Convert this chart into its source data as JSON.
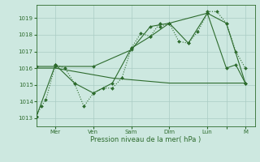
{
  "background_color": "#cde8e0",
  "grid_color": "#aaccC4",
  "line_color": "#2d6b2d",
  "xlabel": "Pression niveau de la mer( hPa )",
  "ylim": [
    1012.5,
    1019.8
  ],
  "yticks": [
    1013,
    1014,
    1015,
    1016,
    1017,
    1018,
    1019
  ],
  "xlim": [
    0,
    23
  ],
  "day_positions": [
    2,
    6,
    10,
    14,
    18,
    20,
    22
  ],
  "day_labels": [
    "Mer",
    "Ven",
    "Sam",
    "Dim",
    "Lun",
    "",
    "M"
  ],
  "series1_x": [
    0,
    0.5,
    1,
    2,
    2,
    3,
    4,
    5,
    6,
    7,
    8,
    9,
    10,
    11,
    12,
    13,
    13,
    14,
    15,
    16,
    17,
    18,
    18,
    19,
    20,
    21,
    22
  ],
  "series1_y": [
    1013.1,
    1013.7,
    1014.1,
    1016.2,
    1016.2,
    1016.0,
    1015.1,
    1013.7,
    1014.5,
    1014.8,
    1014.8,
    1015.4,
    1017.2,
    1018.1,
    1017.9,
    1018.7,
    1018.5,
    1018.7,
    1017.6,
    1017.5,
    1018.2,
    1019.3,
    1019.4,
    1019.4,
    1018.7,
    1017.0,
    1016.0
  ],
  "series2_x": [
    0,
    2,
    4,
    6,
    8,
    10,
    12,
    14,
    16,
    18,
    20,
    22
  ],
  "series2_y": [
    1013.1,
    1016.2,
    1015.1,
    1014.5,
    1015.1,
    1017.2,
    1017.9,
    1018.7,
    1017.5,
    1019.3,
    1018.7,
    1015.1
  ],
  "series3_x": [
    0,
    2,
    6,
    10,
    12,
    14,
    18,
    20,
    21,
    22
  ],
  "series3_y": [
    1016.1,
    1016.1,
    1016.1,
    1017.1,
    1018.5,
    1018.7,
    1019.3,
    1016.0,
    1016.2,
    1015.1
  ],
  "series4_x": [
    0,
    2,
    4,
    6,
    8,
    10,
    12,
    14,
    16,
    18,
    20,
    22
  ],
  "series4_y": [
    1016.0,
    1016.0,
    1015.8,
    1015.6,
    1015.4,
    1015.3,
    1015.2,
    1015.1,
    1015.1,
    1015.1,
    1015.1,
    1015.1
  ]
}
